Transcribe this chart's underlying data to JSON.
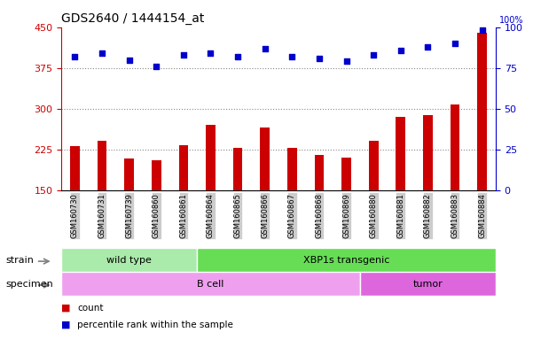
{
  "title": "GDS2640 / 1444154_at",
  "samples": [
    "GSM160730",
    "GSM160731",
    "GSM160739",
    "GSM160860",
    "GSM160861",
    "GSM160864",
    "GSM160865",
    "GSM160866",
    "GSM160867",
    "GSM160868",
    "GSM160869",
    "GSM160880",
    "GSM160881",
    "GSM160882",
    "GSM160883",
    "GSM160884"
  ],
  "counts": [
    232,
    242,
    208,
    205,
    233,
    270,
    228,
    265,
    228,
    215,
    210,
    242,
    285,
    288,
    308,
    440
  ],
  "percentiles": [
    82,
    84,
    80,
    76,
    83,
    84,
    82,
    87,
    82,
    81,
    79,
    83,
    86,
    88,
    90,
    98
  ],
  "ylim_left": [
    150,
    450
  ],
  "ylim_right": [
    0,
    100
  ],
  "yticks_left": [
    150,
    225,
    300,
    375,
    450
  ],
  "yticks_right": [
    0,
    25,
    50,
    75,
    100
  ],
  "bar_color": "#cc0000",
  "dot_color": "#0000cc",
  "strain_groups": [
    {
      "label": "wild type",
      "start": 0,
      "end": 4,
      "color": "#aaeaaa"
    },
    {
      "label": "XBP1s transgenic",
      "start": 5,
      "end": 15,
      "color": "#66dd55"
    }
  ],
  "specimen_groups": [
    {
      "label": "B cell",
      "start": 0,
      "end": 10,
      "color": "#eea0ee"
    },
    {
      "label": "tumor",
      "start": 11,
      "end": 15,
      "color": "#dd66dd"
    }
  ],
  "legend_items": [
    {
      "color": "#cc0000",
      "label": "count"
    },
    {
      "color": "#0000cc",
      "label": "percentile rank within the sample"
    }
  ],
  "tick_label_bg": "#cccccc",
  "strain_row_label": "strain",
  "specimen_row_label": "specimen",
  "dotted_line_color": "#888888",
  "grid_lines": [
    225,
    300,
    375
  ],
  "background_color": "#ffffff",
  "bar_width": 0.35,
  "title_fontsize": 10,
  "axis_fontsize": 8,
  "label_fontsize": 8
}
